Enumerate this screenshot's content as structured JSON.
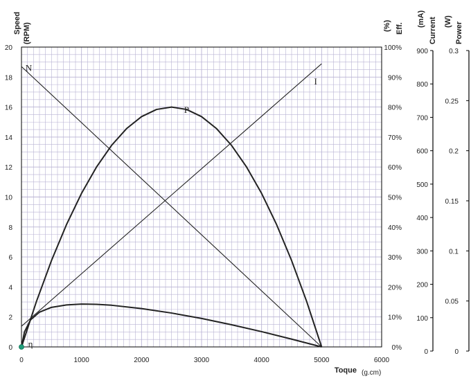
{
  "chart_data": {
    "type": "line",
    "xlabel": "Toque",
    "xunit": "(g.cm)",
    "xlim": [
      0,
      6000
    ],
    "xticks": [
      0,
      1000,
      2000,
      3000,
      4000,
      5000,
      6000
    ],
    "grid": true,
    "colors": {
      "grid": "#b9b3d4",
      "frame": "#000000",
      "curve": "#222222",
      "origin_marker": "#1f9e7a"
    },
    "axes": [
      {
        "id": "speed",
        "title": [
          "Speed",
          "(RPM)"
        ],
        "range": [
          0,
          20
        ],
        "ticks": [
          "0",
          "2",
          "4",
          "6",
          "8",
          "10",
          "12",
          "14",
          "16",
          "18",
          "20"
        ]
      },
      {
        "id": "efficiency",
        "title": [
          "(%)",
          "Eff."
        ],
        "range": [
          0,
          100
        ],
        "ticks": [
          "0%",
          "10%",
          "20%",
          "30%",
          "40%",
          "50%",
          "60%",
          "70%",
          "80%",
          "90%",
          "100%"
        ]
      },
      {
        "id": "current",
        "title": [
          "(mA)",
          "Current"
        ],
        "range": [
          0,
          900
        ],
        "ticks": [
          "0",
          "100",
          "200",
          "300",
          "400",
          "500",
          "600",
          "700",
          "800",
          "900"
        ]
      },
      {
        "id": "power",
        "title": [
          "(W)",
          "Power"
        ],
        "range": [
          0,
          0.3
        ],
        "ticks": [
          "0",
          "0.05",
          "0.1",
          "0.15",
          "0.2",
          "0.25",
          "0.3"
        ]
      }
    ],
    "series": [
      {
        "name": "N",
        "axis": "speed",
        "label_at": [
          120,
          18.6
        ],
        "x": [
          0,
          5000
        ],
        "y": [
          18.7,
          0
        ]
      },
      {
        "name": "I",
        "axis": "current",
        "label_at": [
          4900,
          796
        ],
        "x": [
          0,
          5000
        ],
        "y": [
          62,
          850
        ]
      },
      {
        "name": "P",
        "axis": "speed",
        "label_at": [
          2750,
          15.8
        ],
        "x": [
          0,
          250,
          500,
          750,
          1000,
          1250,
          1500,
          1750,
          2000,
          2250,
          2500,
          2750,
          3000,
          3250,
          3500,
          3750,
          4000,
          4250,
          4500,
          4750,
          5000
        ],
        "y": [
          0,
          3.04,
          5.76,
          8.16,
          10.24,
          12.0,
          13.44,
          14.56,
          15.36,
          15.84,
          16.0,
          15.84,
          15.36,
          14.56,
          13.44,
          12.0,
          10.24,
          8.16,
          5.76,
          3.04,
          0
        ]
      },
      {
        "name": "η",
        "axis": "efficiency",
        "label_at": [
          150,
          0.9
        ],
        "x": [
          0,
          50,
          150,
          300,
          500,
          750,
          1000,
          1250,
          1500,
          2000,
          2500,
          3000,
          3500,
          4000,
          4500,
          5000
        ],
        "y": [
          0,
          5.0,
          9.0,
          11.6,
          13.2,
          14.0,
          14.3,
          14.2,
          13.9,
          12.8,
          11.3,
          9.5,
          7.4,
          5.1,
          2.6,
          0
        ]
      }
    ]
  }
}
